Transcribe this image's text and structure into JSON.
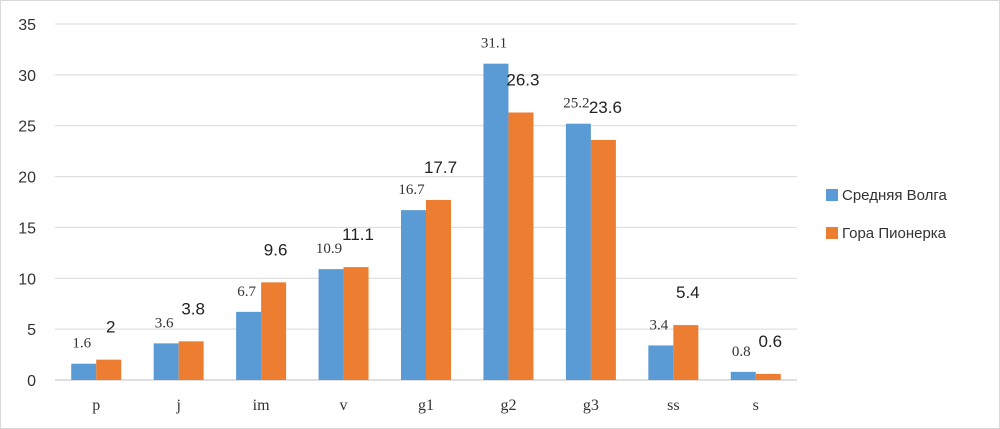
{
  "chart_data": {
    "type": "bar",
    "categories": [
      "p",
      "j",
      "im",
      "v",
      "g1",
      "g2",
      "g3",
      "ss",
      "s"
    ],
    "series": [
      {
        "name": "Средняя Волга",
        "color": "#5b9bd5",
        "values": [
          1.6,
          3.6,
          6.7,
          10.9,
          16.7,
          31.1,
          25.2,
          3.4,
          0.8
        ],
        "data_labels": [
          "1.6",
          "3.6",
          "6.7",
          "10.9",
          "16.7",
          "31.1",
          "25.2",
          "3.4",
          "0.8"
        ]
      },
      {
        "name": "Гора Пионерка",
        "color": "#ed7d31",
        "values": [
          2,
          3.8,
          9.6,
          11.1,
          17.7,
          26.3,
          23.6,
          5.4,
          0.6
        ],
        "data_labels": [
          "2",
          "3.8",
          "9.6",
          "11.1",
          "17.7",
          "26.3",
          "23.6",
          "5.4",
          "0.6"
        ]
      }
    ],
    "ylim": [
      0,
      35
    ],
    "yticks": [
      "0",
      "5",
      "10",
      "15",
      "20",
      "25",
      "30",
      "35"
    ],
    "grid": true,
    "legend_position": "right"
  }
}
